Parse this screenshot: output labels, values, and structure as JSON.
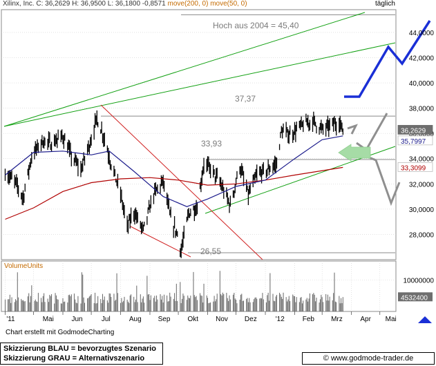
{
  "header": {
    "symbol": "Xilinx, Inc.",
    "quote": "C: 36,2629  H: 36,9500  L: 36,1800  -0,8571",
    "ma200": "move(200, 0)",
    "ma50": "move(50, 0)",
    "interval": "täglich"
  },
  "volume_label": "VolumeUnits",
  "credit": "Chart erstellt mit GodmodeCharting",
  "footer": {
    "line1": "Skizzierung BLAU = bevorzugtes Szenario",
    "line2": "Skizzierung GRAU = Alternativszenario",
    "url": "© www.godmode-trader.de"
  },
  "colors": {
    "price": "#000000",
    "ma50": "#1c1c8c",
    "ma200": "#b00000",
    "trend_green": "#11a011",
    "trend_red": "#d02020",
    "scenario_blue": "#1a2fd6",
    "scenario_gray": "#8f8f8f",
    "arrow_green": "#a6dca6",
    "grid": "#d0d0d0"
  },
  "chart_data": [
    {
      "type": "line",
      "title": "",
      "x_tick_labels": [
        "'11",
        "Mai",
        "Jun",
        "Jul",
        "Aug",
        "Sep",
        "Okt",
        "Nov",
        "Dez",
        "'12",
        "Feb",
        "Mrz",
        "Apr",
        "Mai"
      ],
      "y_tick_labels": [
        "28,0000",
        "30,0000",
        "32,0000",
        "34,0000",
        "36,0000",
        "38,0000",
        "40,0000",
        "42,0000",
        "44,0000"
      ],
      "ylim": [
        26.0,
        45.8
      ],
      "series": [
        {
          "name": "Xilinx, Inc.",
          "values": [
            {
              "x": "2011-04-01",
              "y": 32.9
            },
            {
              "x": "2011-04-12",
              "y": 32.1
            },
            {
              "x": "2011-04-20",
              "y": 30.9
            },
            {
              "x": "2011-04-29",
              "y": 34.2
            },
            {
              "x": "2011-05-10",
              "y": 35.4
            },
            {
              "x": "2011-05-20",
              "y": 35.2
            },
            {
              "x": "2011-06-01",
              "y": 35.8
            },
            {
              "x": "2011-06-10",
              "y": 34.2
            },
            {
              "x": "2011-06-20",
              "y": 33.1
            },
            {
              "x": "2011-07-01",
              "y": 35.6
            },
            {
              "x": "2011-07-07",
              "y": 37.2
            },
            {
              "x": "2011-07-15",
              "y": 35.6
            },
            {
              "x": "2011-07-22",
              "y": 33.6
            },
            {
              "x": "2011-08-01",
              "y": 31.2
            },
            {
              "x": "2011-08-08",
              "y": 28.6
            },
            {
              "x": "2011-08-15",
              "y": 29.8
            },
            {
              "x": "2011-08-25",
              "y": 28.3
            },
            {
              "x": "2011-09-05",
              "y": 31.2
            },
            {
              "x": "2011-09-15",
              "y": 32.2
            },
            {
              "x": "2011-09-23",
              "y": 29.2
            },
            {
              "x": "2011-09-30",
              "y": 28.0
            },
            {
              "x": "2011-10-04",
              "y": 26.7
            },
            {
              "x": "2011-10-12",
              "y": 29.7
            },
            {
              "x": "2011-10-21",
              "y": 30.2
            },
            {
              "x": "2011-10-28",
              "y": 33.6
            },
            {
              "x": "2011-11-04",
              "y": 33.2
            },
            {
              "x": "2011-11-14",
              "y": 32.1
            },
            {
              "x": "2011-11-25",
              "y": 30.3
            },
            {
              "x": "2011-12-05",
              "y": 33.4
            },
            {
              "x": "2011-12-14",
              "y": 31.1
            },
            {
              "x": "2011-12-23",
              "y": 32.7
            },
            {
              "x": "2012-01-03",
              "y": 33.1
            },
            {
              "x": "2012-01-13",
              "y": 33.6
            },
            {
              "x": "2012-01-18",
              "y": 36.2
            },
            {
              "x": "2012-01-27",
              "y": 35.9
            },
            {
              "x": "2012-02-08",
              "y": 36.6
            },
            {
              "x": "2012-02-20",
              "y": 37.0
            },
            {
              "x": "2012-03-01",
              "y": 36.3
            },
            {
              "x": "2012-03-12",
              "y": 36.7
            },
            {
              "x": "2012-03-19",
              "y": 36.9
            },
            {
              "x": "2012-03-23",
              "y": 36.26
            }
          ]
        },
        {
          "name": "move(50, 0)",
          "values": [
            {
              "x": "2011-04-01",
              "y": 32.7
            },
            {
              "x": "2011-05-01",
              "y": 34.5
            },
            {
              "x": "2011-06-01",
              "y": 34.6
            },
            {
              "x": "2011-07-01",
              "y": 34.3
            },
            {
              "x": "2011-07-20",
              "y": 34.6
            },
            {
              "x": "2011-08-15",
              "y": 33.0
            },
            {
              "x": "2011-09-15",
              "y": 31.0
            },
            {
              "x": "2011-10-10",
              "y": 30.2
            },
            {
              "x": "2011-11-01",
              "y": 30.8
            },
            {
              "x": "2011-12-01",
              "y": 31.8
            },
            {
              "x": "2012-01-01",
              "y": 32.3
            },
            {
              "x": "2012-02-01",
              "y": 34.0
            },
            {
              "x": "2012-03-01",
              "y": 35.5
            },
            {
              "x": "2012-03-23",
              "y": 35.8
            }
          ]
        },
        {
          "name": "move(200, 0)",
          "values": [
            {
              "x": "2011-04-01",
              "y": 29.2
            },
            {
              "x": "2011-05-01",
              "y": 30.1
            },
            {
              "x": "2011-06-01",
              "y": 31.4
            },
            {
              "x": "2011-07-01",
              "y": 32.1
            },
            {
              "x": "2011-08-01",
              "y": 32.4
            },
            {
              "x": "2011-09-01",
              "y": 32.5
            },
            {
              "x": "2011-10-01",
              "y": 32.3
            },
            {
              "x": "2011-11-01",
              "y": 31.9
            },
            {
              "x": "2011-12-01",
              "y": 32.0
            },
            {
              "x": "2012-01-01",
              "y": 32.3
            },
            {
              "x": "2012-02-01",
              "y": 32.7
            },
            {
              "x": "2012-03-23",
              "y": 33.31
            }
          ]
        }
      ],
      "last_value_labels": [
        {
          "text": "36,2629",
          "series": "Xilinx, Inc."
        },
        {
          "text": "35,7997",
          "series": "move(50, 0)"
        },
        {
          "text": "33,3099",
          "series": "move(200, 0)"
        }
      ],
      "annotations": [
        "Hoch aus 2004  =  45,40",
        "37,37",
        "33,93",
        "26,55"
      ]
    },
    {
      "type": "bar",
      "title": "",
      "ylabel": "VolumeUnits",
      "y_tick_labels": [
        "10000000"
      ],
      "last_value_label": "4532400",
      "ylim": [
        0,
        16000000
      ]
    }
  ]
}
